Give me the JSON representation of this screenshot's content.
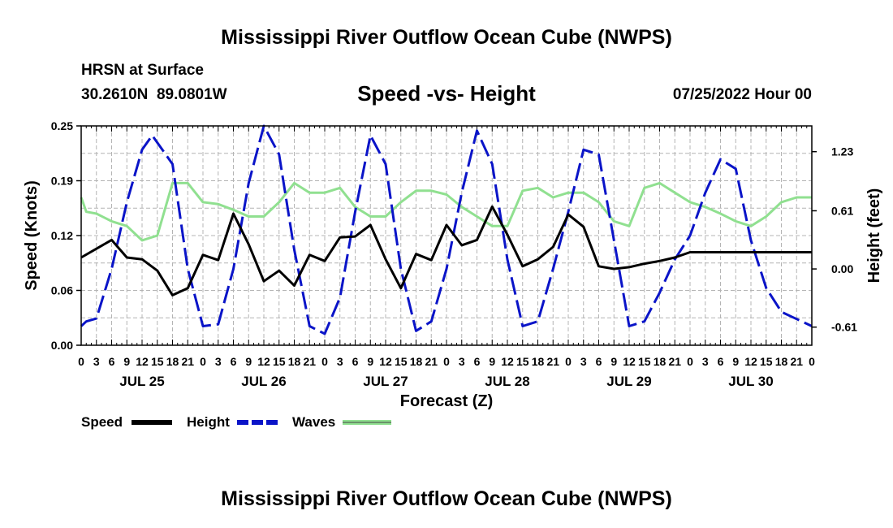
{
  "page": {
    "title": "Mississippi River Outflow Ocean Cube (NWPS)",
    "station": "HRSN at Surface",
    "coords": "30.2610N  89.0801W",
    "chart_title": "Speed -vs- Height",
    "issued": "07/25/2022 Hour 00",
    "second_title": "Mississippi River Outflow Ocean Cube (NWPS)"
  },
  "colors": {
    "speed": "#000000",
    "height": "#0a14c8",
    "waves": "#90e090",
    "grid": "#b4b4b4"
  },
  "chart_data": {
    "type": "line",
    "title": "Speed -vs- Height",
    "xlabel": "Forecast (Z)",
    "ylabel": "Speed (Knots)",
    "y2label": "Height (feet)",
    "x_range_hours": [
      0,
      144
    ],
    "ylim": [
      0,
      0.25
    ],
    "y2lim": [
      -0.8,
      1.5
    ],
    "y_ticks": [
      "0.00",
      "0.06",
      "0.12",
      "0.19",
      "0.25"
    ],
    "y2_ticks": [
      "-0.61",
      "0.00",
      "0.61",
      "1.23"
    ],
    "x_tick_labels": [
      "0",
      "3",
      "6",
      "9",
      "12",
      "15",
      "18",
      "21",
      "0",
      "3",
      "6",
      "9",
      "12",
      "15",
      "18",
      "21",
      "0",
      "3",
      "6",
      "9",
      "12",
      "15",
      "18",
      "21",
      "0",
      "3",
      "6",
      "9",
      "12",
      "15",
      "18",
      "21",
      "0",
      "3",
      "6",
      "9",
      "12",
      "15",
      "18",
      "21",
      "0",
      "3",
      "6",
      "9",
      "12",
      "15",
      "18",
      "21",
      "0"
    ],
    "day_labels": [
      "JUL 25",
      "JUL 26",
      "JUL 27",
      "JUL 28",
      "JUL 29",
      "JUL 30"
    ],
    "legend": [
      "Speed",
      "Height",
      "Waves"
    ],
    "series": [
      {
        "name": "Speed",
        "axis": "left",
        "x": [
          0,
          6,
          9,
          12,
          15,
          18,
          21,
          24,
          27,
          30,
          33,
          36,
          39,
          42,
          45,
          48,
          51,
          54,
          57,
          60,
          63,
          66,
          69,
          72,
          75,
          78,
          81,
          84,
          87,
          90,
          93,
          96,
          99,
          102,
          105,
          108,
          111,
          114,
          117,
          120,
          123,
          126,
          129,
          132,
          144
        ],
        "values": [
          0.1,
          0.12,
          0.1,
          0.098,
          0.085,
          0.057,
          0.065,
          0.103,
          0.097,
          0.15,
          0.115,
          0.073,
          0.085,
          0.068,
          0.103,
          0.096,
          0.123,
          0.124,
          0.137,
          0.098,
          0.065,
          0.104,
          0.097,
          0.137,
          0.114,
          0.12,
          0.158,
          0.126,
          0.09,
          0.098,
          0.112,
          0.149,
          0.135,
          0.09,
          0.087,
          0.089,
          0.093,
          0.096,
          0.1,
          0.106,
          0.106,
          0.106,
          0.106,
          0.106,
          0.106
        ]
      },
      {
        "name": "Height",
        "axis": "right",
        "x": [
          0,
          1,
          3,
          6,
          9,
          12,
          14,
          18,
          21,
          24,
          27,
          30,
          33,
          36,
          39,
          42,
          45,
          48,
          51,
          54,
          57,
          60,
          63,
          66,
          69,
          72,
          75,
          78,
          81,
          84,
          87,
          90,
          93,
          96,
          99,
          102,
          105,
          108,
          111,
          114,
          117,
          120,
          123,
          126,
          129,
          132,
          135,
          138,
          140,
          144
        ],
        "values": [
          -0.6,
          -0.55,
          -0.52,
          0.0,
          0.7,
          1.25,
          1.4,
          1.1,
          0.0,
          -0.6,
          -0.58,
          0.0,
          0.9,
          1.5,
          1.2,
          0.2,
          -0.6,
          -0.68,
          -0.3,
          0.6,
          1.4,
          1.1,
          0.0,
          -0.65,
          -0.55,
          0.0,
          0.8,
          1.45,
          1.1,
          0.1,
          -0.6,
          -0.55,
          0.0,
          0.6,
          1.25,
          1.2,
          0.3,
          -0.6,
          -0.55,
          -0.25,
          0.1,
          0.35,
          0.8,
          1.15,
          1.05,
          0.3,
          -0.2,
          -0.45,
          -0.5,
          -0.6
        ]
      },
      {
        "name": "Waves",
        "axis": "right",
        "x": [
          0,
          1,
          3,
          6,
          9,
          12,
          15,
          18,
          21,
          24,
          27,
          30,
          33,
          36,
          39,
          42,
          45,
          48,
          51,
          54,
          57,
          60,
          63,
          66,
          69,
          72,
          75,
          78,
          81,
          84,
          87,
          90,
          93,
          96,
          99,
          102,
          105,
          108,
          111,
          114,
          117,
          120,
          123,
          126,
          129,
          132,
          135,
          138,
          141,
          144
        ],
        "values": [
          0.75,
          0.6,
          0.58,
          0.5,
          0.45,
          0.3,
          0.35,
          0.9,
          0.9,
          0.7,
          0.68,
          0.62,
          0.55,
          0.55,
          0.7,
          0.9,
          0.8,
          0.8,
          0.85,
          0.65,
          0.55,
          0.55,
          0.7,
          0.82,
          0.82,
          0.78,
          0.65,
          0.55,
          0.45,
          0.45,
          0.82,
          0.85,
          0.75,
          0.8,
          0.8,
          0.7,
          0.5,
          0.45,
          0.85,
          0.9,
          0.8,
          0.7,
          0.65,
          0.58,
          0.5,
          0.45,
          0.55,
          0.7,
          0.75,
          0.75
        ]
      }
    ]
  }
}
